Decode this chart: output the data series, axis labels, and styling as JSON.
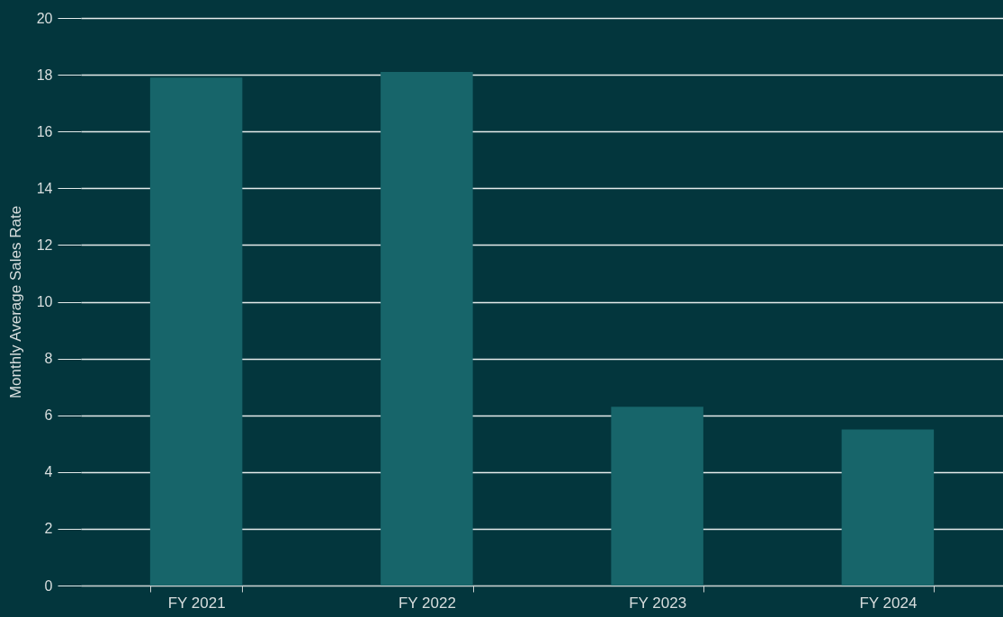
{
  "chart_data": {
    "type": "bar",
    "ylabel": "Monthly Average Sales Rate",
    "categories": [
      "FY 2021",
      "FY 2022",
      "FY 2023",
      "FY 2024"
    ],
    "values": [
      17.9,
      18.1,
      6.3,
      5.5
    ],
    "color": "#17656a",
    "ylim": [
      0,
      20
    ],
    "yticks": [
      0,
      2,
      4,
      6,
      8,
      10,
      12,
      14,
      16,
      18,
      20
    ],
    "grid": "y"
  }
}
